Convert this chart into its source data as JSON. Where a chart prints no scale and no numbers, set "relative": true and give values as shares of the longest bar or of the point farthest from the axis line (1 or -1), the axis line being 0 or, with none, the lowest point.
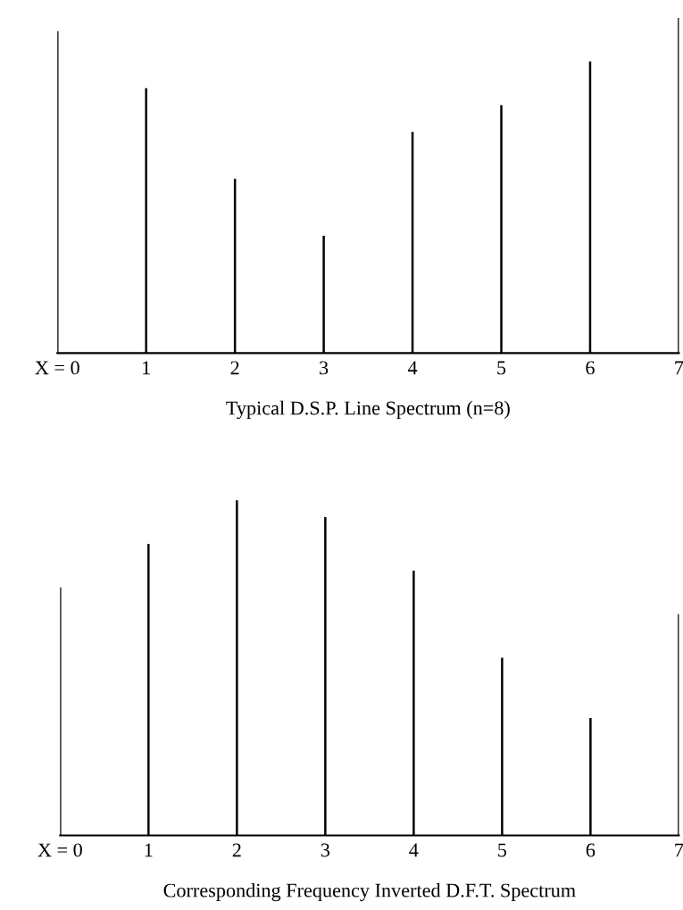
{
  "chart_data": [
    {
      "type": "bar",
      "relative": true,
      "xlabel": "Typical D.S.P. Line Spectrum (n=8)",
      "categories": [
        "X = 0",
        "1",
        "2",
        "3",
        "4",
        "5",
        "6",
        "7"
      ],
      "color": "#000000",
      "values": [
        0.96,
        0.79,
        0.52,
        0.35,
        0.66,
        0.74,
        0.87,
        1
      ]
    },
    {
      "type": "bar",
      "relative": true,
      "xlabel": "Corresponding Frequency Inverted D.F.T. Spectrum",
      "categories": [
        "X = 0",
        "1",
        "2",
        "3",
        "4",
        "5",
        "6",
        "7"
      ],
      "color": "#000000",
      "values": [
        0.74,
        0.87,
        1,
        0.95,
        0.79,
        0.53,
        0.35,
        0.66
      ]
    }
  ]
}
